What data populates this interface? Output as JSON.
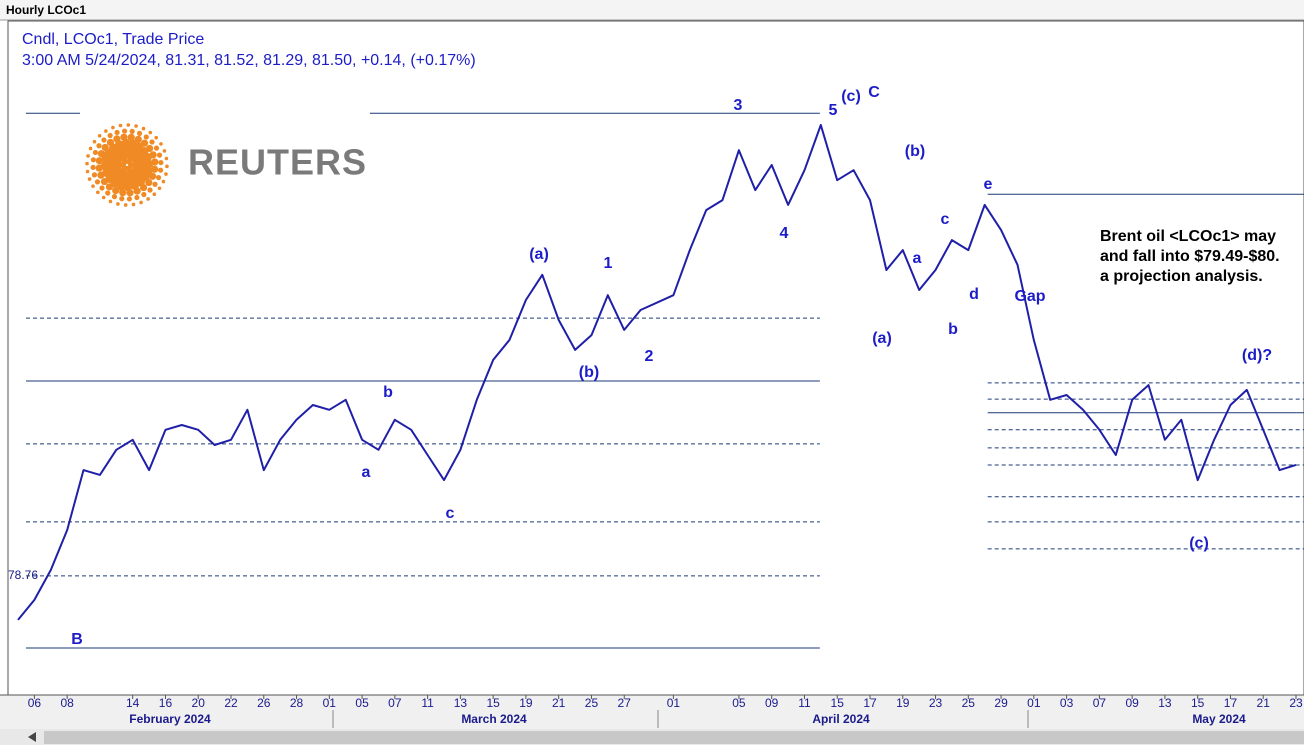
{
  "window": {
    "title": "Hourly LCOc1"
  },
  "legend": {
    "line1": "Cndl, LCOc1, Trade Price",
    "line2": "3:00 AM 5/24/2024, 81.31, 81.52, 81.29, 81.50, +0.14, (+0.17%)"
  },
  "logo": {
    "text": "REUTERS"
  },
  "chart_data": {
    "type": "line",
    "color": "#1f1fa8",
    "x": [
      "2024-02-05",
      "2024-02-06",
      "2024-02-07",
      "2024-02-08",
      "2024-02-09",
      "2024-02-12",
      "2024-02-13",
      "2024-02-14",
      "2024-02-15",
      "2024-02-16",
      "2024-02-19",
      "2024-02-20",
      "2024-02-21",
      "2024-02-22",
      "2024-02-23",
      "2024-02-26",
      "2024-02-27",
      "2024-02-28",
      "2024-02-29",
      "2024-03-01",
      "2024-03-04",
      "2024-03-05",
      "2024-03-06",
      "2024-03-07",
      "2024-03-08",
      "2024-03-11",
      "2024-03-12",
      "2024-03-13",
      "2024-03-14",
      "2024-03-15",
      "2024-03-18",
      "2024-03-19",
      "2024-03-20",
      "2024-03-21",
      "2024-03-22",
      "2024-03-25",
      "2024-03-26",
      "2024-03-27",
      "2024-03-28",
      "2024-04-01",
      "2024-04-02",
      "2024-04-03",
      "2024-04-04",
      "2024-04-05",
      "2024-04-08",
      "2024-04-09",
      "2024-04-10",
      "2024-04-11",
      "2024-04-12",
      "2024-04-15",
      "2024-04-16",
      "2024-04-17",
      "2024-04-18",
      "2024-04-19",
      "2024-04-22",
      "2024-04-23",
      "2024-04-24",
      "2024-04-25",
      "2024-04-26",
      "2024-04-29",
      "2024-04-30",
      "2024-05-01",
      "2024-05-02",
      "2024-05-03",
      "2024-05-06",
      "2024-05-07",
      "2024-05-08",
      "2024-05-09",
      "2024-05-10",
      "2024-05-13",
      "2024-05-14",
      "2024-05-15",
      "2024-05-16",
      "2024-05-17",
      "2024-05-20",
      "2024-05-21",
      "2024-05-22",
      "2024-05-23"
    ],
    "values": [
      77.57,
      78.11,
      78.92,
      80.0,
      81.62,
      81.49,
      82.17,
      82.44,
      81.62,
      82.71,
      82.84,
      82.71,
      82.3,
      82.44,
      83.25,
      81.62,
      82.44,
      82.98,
      83.38,
      83.25,
      83.52,
      82.44,
      82.17,
      82.98,
      82.71,
      82.03,
      81.35,
      82.17,
      83.52,
      84.6,
      85.14,
      86.22,
      86.9,
      85.68,
      84.87,
      85.27,
      86.35,
      85.41,
      85.95,
      86.35,
      87.57,
      88.65,
      88.92,
      90.27,
      89.19,
      89.87,
      88.79,
      89.73,
      90.95,
      89.46,
      89.73,
      88.92,
      87.03,
      87.57,
      86.49,
      87.03,
      87.84,
      87.57,
      88.79,
      88.11,
      87.17,
      85.14,
      83.52,
      83.65,
      83.25,
      82.71,
      82.03,
      83.52,
      83.92,
      82.44,
      82.98,
      81.35,
      82.44,
      83.38,
      83.79,
      82.71,
      81.62,
      81.76
    ],
    "xlim": [
      "2024-02-05",
      "2024-05-23"
    ],
    "ylim": [
      75.54,
      93.79
    ],
    "yticks": [
      78.76
    ],
    "xticks": [
      {
        "value": "2024-02-06",
        "label": "06"
      },
      {
        "value": "2024-02-08",
        "label": "08"
      },
      {
        "value": "2024-02-14",
        "label": "14"
      },
      {
        "value": "2024-02-16",
        "label": "16"
      },
      {
        "value": "2024-02-20",
        "label": "20"
      },
      {
        "value": "2024-02-22",
        "label": "22"
      },
      {
        "value": "2024-02-26",
        "label": "26"
      },
      {
        "value": "2024-02-28",
        "label": "28"
      },
      {
        "value": "2024-03-01",
        "label": "01"
      },
      {
        "value": "2024-03-05",
        "label": "05"
      },
      {
        "value": "2024-03-07",
        "label": "07"
      },
      {
        "value": "2024-03-11",
        "label": "11"
      },
      {
        "value": "2024-03-13",
        "label": "13"
      },
      {
        "value": "2024-03-15",
        "label": "15"
      },
      {
        "value": "2024-03-19",
        "label": "19"
      },
      {
        "value": "2024-03-21",
        "label": "21"
      },
      {
        "value": "2024-03-25",
        "label": "25"
      },
      {
        "value": "2024-03-27",
        "label": "27"
      },
      {
        "value": "2024-04-01",
        "label": "01"
      },
      {
        "value": "2024-04-05",
        "label": "05"
      },
      {
        "value": "2024-04-09",
        "label": "09"
      },
      {
        "value": "2024-04-11",
        "label": "11"
      },
      {
        "value": "2024-04-15",
        "label": "15"
      },
      {
        "value": "2024-04-17",
        "label": "17"
      },
      {
        "value": "2024-04-19",
        "label": "19"
      },
      {
        "value": "2024-04-23",
        "label": "23"
      },
      {
        "value": "2024-04-25",
        "label": "25"
      },
      {
        "value": "2024-04-29",
        "label": "29"
      },
      {
        "value": "2024-05-01",
        "label": "01"
      },
      {
        "value": "2024-05-03",
        "label": "03"
      },
      {
        "value": "2024-05-07",
        "label": "07"
      },
      {
        "value": "2024-05-09",
        "label": "09"
      },
      {
        "value": "2024-05-13",
        "label": "13"
      },
      {
        "value": "2024-05-15",
        "label": "15"
      },
      {
        "value": "2024-05-17",
        "label": "17"
      },
      {
        "value": "2024-05-21",
        "label": "21"
      },
      {
        "value": "2024-05-23",
        "label": "23"
      }
    ],
    "months": [
      "February 2024",
      "March 2024",
      "April 2024",
      "May 2024"
    ],
    "levels": [
      {
        "value": 91.27,
        "style": "solid",
        "from": "2024-02-05",
        "to": "2024-04-12"
      },
      {
        "value": 85.73,
        "style": "dashed",
        "from": "2024-02-05",
        "to": "2024-04-12"
      },
      {
        "value": 84.03,
        "style": "solid",
        "from": "2024-02-05",
        "to": "2024-04-12"
      },
      {
        "value": 82.33,
        "style": "dashed",
        "from": "2024-02-05",
        "to": "2024-04-12"
      },
      {
        "value": 80.22,
        "style": "dashed",
        "from": "2024-02-05",
        "to": "2024-04-12"
      },
      {
        "value": 78.76,
        "style": "dashed",
        "from": "2024-02-05",
        "to": "2024-04-12"
      },
      {
        "value": 76.81,
        "style": "solid",
        "from": "2024-02-05",
        "to": "2024-04-12"
      },
      {
        "value": 89.08,
        "style": "solid",
        "from": "2024-04-26",
        "to": "2024-05-23"
      },
      {
        "value": 83.98,
        "style": "dashed",
        "from": "2024-04-26",
        "to": "2024-05-23"
      },
      {
        "value": 83.54,
        "style": "dashed",
        "from": "2024-04-26",
        "to": "2024-05-23"
      },
      {
        "value": 83.17,
        "style": "solid",
        "from": "2024-04-26",
        "to": "2024-05-23"
      },
      {
        "value": 82.71,
        "style": "dashed",
        "from": "2024-04-26",
        "to": "2024-05-23"
      },
      {
        "value": 82.22,
        "style": "dashed",
        "from": "2024-04-26",
        "to": "2024-05-23"
      },
      {
        "value": 81.76,
        "style": "dashed",
        "from": "2024-04-26",
        "to": "2024-05-23"
      },
      {
        "value": 80.9,
        "style": "dashed",
        "from": "2024-04-26",
        "to": "2024-05-23"
      },
      {
        "value": 80.22,
        "style": "dashed",
        "from": "2024-04-26",
        "to": "2024-05-23"
      },
      {
        "value": 79.49,
        "style": "dashed",
        "from": "2024-04-26",
        "to": "2024-05-23"
      }
    ],
    "annotations": [
      "3",
      "5",
      "(c)",
      "C",
      "(b)",
      "e",
      "c",
      "a",
      "d",
      "Gap",
      "(a)",
      "b",
      "(a)",
      "1",
      "(b)",
      "2",
      "4",
      "b",
      "a",
      "c",
      "B",
      "(d)?",
      "(c)"
    ],
    "note": [
      "Brent oil <LCOc1> may",
      "and fall into $79.49-$80.",
      "a projection analysis."
    ]
  }
}
